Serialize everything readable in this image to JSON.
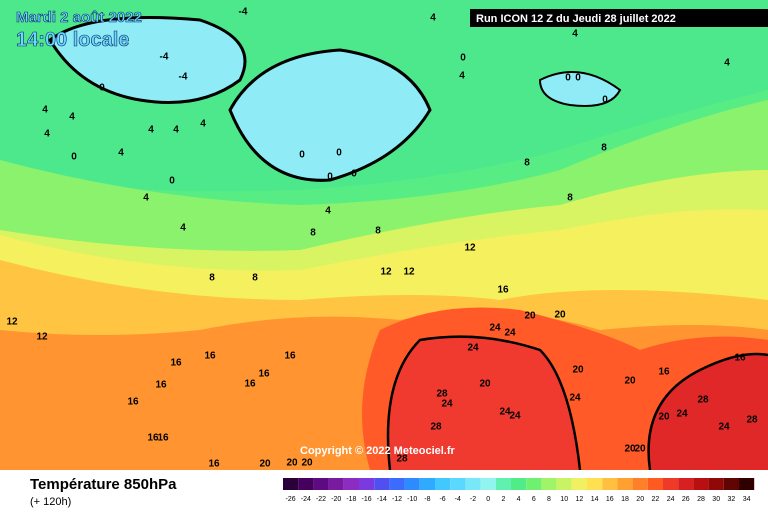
{
  "header": {
    "date": "Mardi 2 août 2022",
    "time": "14:00 locale",
    "run": "Run ICON 12 Z du Jeudi 28 juillet 2022"
  },
  "copyright": "Copyright © 2022 Meteociel.fr",
  "footer": {
    "title": "Température 850hPa",
    "lead": "(+ 120h)"
  },
  "scale": {
    "values": [
      -26,
      -24,
      -22,
      -20,
      -18,
      -16,
      -14,
      -12,
      -10,
      -8,
      -6,
      -4,
      -2,
      0,
      2,
      4,
      6,
      8,
      10,
      12,
      14,
      16,
      18,
      20,
      22,
      24,
      26,
      28,
      30,
      32,
      34
    ],
    "colors": [
      "#2a0038",
      "#45005e",
      "#5e0a80",
      "#7a1aa0",
      "#8c2cc0",
      "#7a3ae0",
      "#5050f0",
      "#3c6cff",
      "#2c8cff",
      "#30aaff",
      "#40c8ff",
      "#5ad8ff",
      "#78e8f8",
      "#90f4f0",
      "#60f0b0",
      "#50ec88",
      "#70f070",
      "#a0f468",
      "#c8f464",
      "#f0f060",
      "#ffe050",
      "#ffc040",
      "#ffa030",
      "#ff8028",
      "#ff5a20",
      "#f03a28",
      "#d82020",
      "#b81010",
      "#900808",
      "#600404",
      "#300000"
    ]
  },
  "contour_labels": [
    -4,
    4,
    4,
    4,
    0,
    4,
    0,
    0,
    0,
    -4,
    -4,
    0,
    4,
    4,
    4,
    4,
    4,
    4,
    4,
    0,
    0,
    0,
    0,
    0,
    0,
    8,
    8,
    8,
    4,
    4,
    4,
    8,
    8,
    12,
    12,
    12,
    8,
    8,
    16,
    12,
    12,
    20,
    20,
    24,
    24,
    24,
    16,
    16,
    16,
    16,
    16,
    16,
    16,
    20,
    20,
    16,
    16,
    28,
    24,
    20,
    24,
    28,
    24,
    28,
    24,
    24,
    28,
    16,
    16,
    20,
    20,
    16,
    20,
    20,
    20,
    28,
    24,
    20
  ]
}
